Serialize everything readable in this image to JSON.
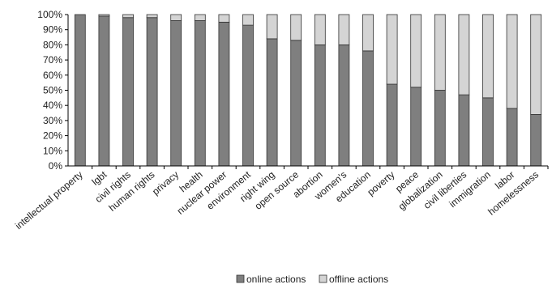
{
  "chart_data": {
    "type": "bar",
    "stacked": true,
    "percent": true,
    "categories": [
      "intellectual property",
      "lgbt",
      "civil rights",
      "human rights",
      "privacy",
      "health",
      "nuclear power",
      "environment",
      "right wing",
      "open source",
      "abortion",
      "women's",
      "education",
      "poverty",
      "peace",
      "globalization",
      "civil liberties",
      "immigration",
      "labor",
      "homelessness"
    ],
    "series": [
      {
        "name": "online actions",
        "color": "#7f7f7f",
        "values": [
          100,
          99,
          98,
          98,
          96,
          96,
          95,
          93,
          84,
          83,
          80,
          80,
          76,
          54,
          52,
          50,
          47,
          45,
          38,
          34
        ]
      },
      {
        "name": "offline actions",
        "color": "#d4d4d4",
        "values": [
          0,
          1,
          2,
          2,
          4,
          4,
          5,
          7,
          16,
          17,
          20,
          20,
          24,
          46,
          48,
          50,
          53,
          55,
          62,
          66
        ]
      }
    ],
    "ylim": [
      0,
      100
    ],
    "yticks": [
      "0%",
      "10%",
      "20%",
      "30%",
      "40%",
      "50%",
      "60%",
      "70%",
      "80%",
      "90%",
      "100%"
    ],
    "grid": false,
    "legend": "bottom",
    "title": "",
    "xlabel": "",
    "ylabel": ""
  }
}
